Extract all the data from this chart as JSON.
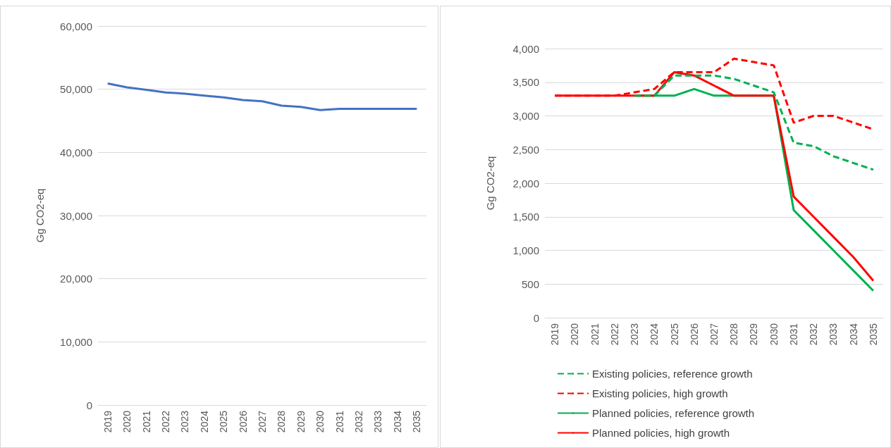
{
  "chart_data": [
    {
      "type": "line",
      "ylabel": "Gg CO2-eq",
      "categories": [
        "2019",
        "2020",
        "2021",
        "2022",
        "2023",
        "2024",
        "2025",
        "2026",
        "2027",
        "2028",
        "2029",
        "2030",
        "2031",
        "2032",
        "2033",
        "2034",
        "2035"
      ],
      "series": [
        {
          "color": "#4472c4",
          "values": [
            50900,
            50300,
            49900,
            49500,
            49300,
            49000,
            48700,
            48300,
            48100,
            47400,
            47200,
            46700,
            46900,
            46900,
            46900,
            46900,
            46900
          ]
        }
      ],
      "ylim": [
        0,
        60000
      ],
      "yticks": [
        {
          "value": 0,
          "label": "0"
        },
        {
          "value": 10000,
          "label": "10,000"
        },
        {
          "value": 20000,
          "label": "20,000"
        },
        {
          "value": 30000,
          "label": "30,000"
        },
        {
          "value": 40000,
          "label": "40,000"
        },
        {
          "value": 50000,
          "label": "50,000"
        },
        {
          "value": 60000,
          "label": "60,000"
        }
      ],
      "grid": "y",
      "legend": false,
      "marker": "none"
    },
    {
      "type": "line",
      "ylabel": "Gg CO2-eq",
      "categories": [
        "2019",
        "2020",
        "2021",
        "2022",
        "2023",
        "2024",
        "2025",
        "2026",
        "2027",
        "2028",
        "2029",
        "2030",
        "2031",
        "2032",
        "2033",
        "2034",
        "2035"
      ],
      "series": [
        {
          "name": "Existing policies, reference growth",
          "color": "#00b050",
          "line_style": "dashed",
          "values": [
            null,
            null,
            null,
            null,
            3300,
            3300,
            3600,
            3600,
            3600,
            3550,
            3450,
            3350,
            2600,
            2550,
            2400,
            2300,
            2200
          ]
        },
        {
          "name": "Existing policies, high growth",
          "color": "#ff0000",
          "line_style": "dashed",
          "values": [
            3300,
            3300,
            3300,
            3300,
            3350,
            3400,
            3650,
            3650,
            3650,
            3850,
            3800,
            3750,
            2900,
            3000,
            3000,
            2900,
            2800
          ]
        },
        {
          "name": "Planned policies, reference growth",
          "color": "#00b050",
          "line_style": "solid",
          "values": [
            null,
            null,
            null,
            null,
            3300,
            3300,
            3300,
            3400,
            3300,
            3300,
            3300,
            3300,
            1600,
            1300,
            1000,
            700,
            400
          ]
        },
        {
          "name": "Planned policies, high growth",
          "color": "#ff0000",
          "line_style": "solid",
          "values": [
            3300,
            3300,
            3300,
            3300,
            3300,
            3300,
            3650,
            3600,
            3450,
            3300,
            3300,
            3300,
            1800,
            1500,
            1200,
            900,
            550
          ]
        }
      ],
      "ylim": [
        0,
        4000
      ],
      "yticks": [
        {
          "value": 0,
          "label": "0"
        },
        {
          "value": 500,
          "label": "500"
        },
        {
          "value": 1000,
          "label": "1,000"
        },
        {
          "value": 1500,
          "label": "1,500"
        },
        {
          "value": 2000,
          "label": "2,000"
        },
        {
          "value": 2500,
          "label": "2,500"
        },
        {
          "value": 3000,
          "label": "3,000"
        },
        {
          "value": 3500,
          "label": "3,500"
        },
        {
          "value": 4000,
          "label": "4,000"
        }
      ],
      "grid": "y",
      "legend": "bottom",
      "marker": "none"
    }
  ]
}
